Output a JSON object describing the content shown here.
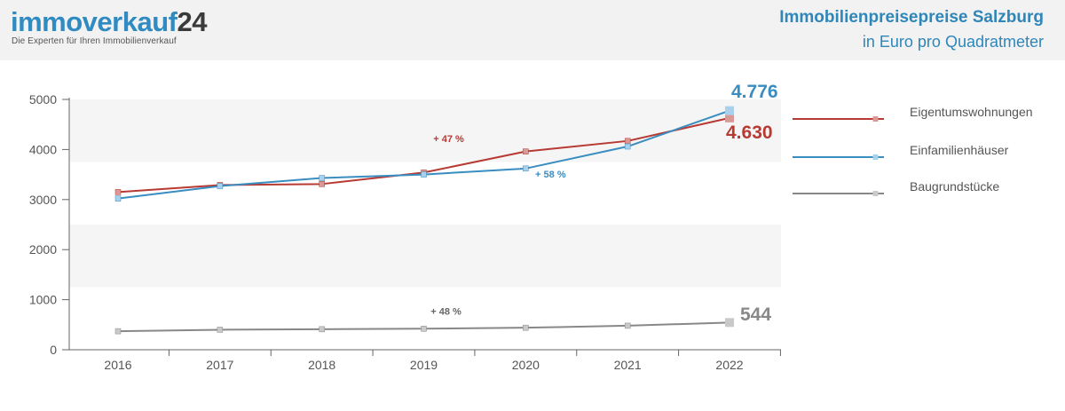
{
  "header": {
    "logo_main": "immoverkauf",
    "logo_num": "24",
    "tagline": "Die Experten für Ihren Immobilienverkauf",
    "title": "Immobilienpreisepreise Salzburg",
    "subtitle": "in Euro pro Quadratmeter"
  },
  "chart_data": {
    "type": "line",
    "title": "Immobilienpreisepreise Salzburg",
    "subtitle": "in Euro pro Quadratmeter",
    "xlabel": "",
    "ylabel": "",
    "categories": [
      "2016",
      "2017",
      "2018",
      "2019",
      "2020",
      "2021",
      "2022"
    ],
    "ylim": [
      0,
      5000
    ],
    "yticks": [
      0,
      1000,
      2000,
      3000,
      4000,
      5000
    ],
    "grid": "alternating horizontal bands",
    "legend_position": "right",
    "series": [
      {
        "name": "Eigentumswohnungen",
        "color": "#b73a33",
        "marker_color": "#d99a97",
        "values": [
          3150,
          3290,
          3310,
          3540,
          3960,
          4170,
          4630
        ],
        "end_label": "4.630",
        "change_label": "+ 47 %",
        "change_anchor": {
          "x": "2019",
          "y": 4150
        }
      },
      {
        "name": "Einfamilienhäuser",
        "color": "#3a8dc1",
        "marker_color": "#a9d1ec",
        "values": [
          3020,
          3270,
          3430,
          3500,
          3620,
          4060,
          4776
        ],
        "end_label": "4.776",
        "change_label": "+ 58 %",
        "change_anchor": {
          "x": "2020",
          "y": 3440
        }
      },
      {
        "name": "Baugrundstücke",
        "color": "#888888",
        "marker_color": "#c9c9c9",
        "values": [
          370,
          400,
          410,
          420,
          440,
          480,
          544
        ],
        "end_label": "544",
        "change_label": "+ 48 %",
        "change_anchor": {
          "x": "2019",
          "y": 700
        }
      }
    ]
  }
}
